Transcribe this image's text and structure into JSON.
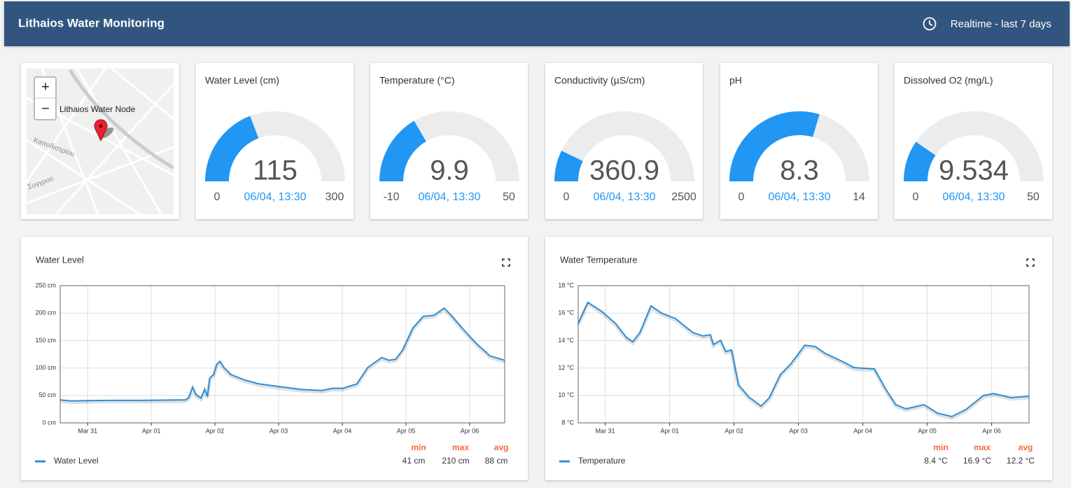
{
  "header": {
    "title": "Lithaios Water Monitoring",
    "range": "Realtime - last 7 days"
  },
  "map": {
    "zoom_in": "+",
    "zoom_out": "−",
    "marker_label": "Lithaios Water Node",
    "streets": [
      "Καποδιστρίου",
      "Συγγρού"
    ]
  },
  "gauges": [
    {
      "title": "Water Level (cm)",
      "value": 115,
      "min": 0,
      "max": 300,
      "time": "06/04, 13:30"
    },
    {
      "title": "Temperature (°C)",
      "value": 9.9,
      "min": -10,
      "max": 50,
      "time": "06/04, 13:30"
    },
    {
      "title": "Conductivity (µS/cm)",
      "value": 360.9,
      "min": 0,
      "max": 2500,
      "time": "06/04, 13:30"
    },
    {
      "title": "pH",
      "value": 8.3,
      "min": 0,
      "max": 14,
      "time": "06/04, 13:30"
    },
    {
      "title": "Dissolved O2 (mg/L)",
      "value": 9.534,
      "min": 0,
      "max": 50,
      "time": "06/04, 13:30"
    }
  ],
  "charts": [
    {
      "type": "line",
      "title": "Water Level",
      "x": [
        -0.43,
        -0.27,
        0.27,
        0.82,
        1.54,
        1.59,
        1.65,
        1.7,
        1.78,
        1.84,
        1.88,
        1.92,
        1.98,
        2.03,
        2.08,
        2.14,
        2.25,
        2.47,
        2.69,
        3.02,
        3.35,
        3.68,
        3.85,
        4.01,
        4.23,
        4.4,
        4.62,
        4.73,
        4.84,
        4.95,
        5.11,
        5.27,
        5.44,
        5.6,
        5.71,
        5.88,
        6.1,
        6.32,
        6.55
      ],
      "series": [
        {
          "name": "Water Level",
          "color": "#2b8fd8",
          "values": [
            42,
            40,
            41,
            41,
            42,
            46,
            65,
            52,
            45,
            61,
            48,
            82,
            88,
            107,
            112,
            101,
            88,
            78,
            71,
            66,
            61,
            59,
            63,
            63,
            71,
            101,
            119,
            114,
            116,
            133,
            173,
            194,
            196,
            209,
            196,
            173,
            145,
            122,
            114
          ]
        }
      ],
      "xlim": [
        -0.43,
        6.55
      ],
      "xticks": [
        {
          "value": 0,
          "label": "Mar 31"
        },
        {
          "value": 1,
          "label": "Apr 01"
        },
        {
          "value": 2,
          "label": "Apr 02"
        },
        {
          "value": 3,
          "label": "Apr 03"
        },
        {
          "value": 4,
          "label": "Apr 04"
        },
        {
          "value": 5,
          "label": "Apr 05"
        },
        {
          "value": 6,
          "label": "Apr 06"
        }
      ],
      "ylim": [
        0,
        250
      ],
      "yticks": [
        {
          "value": 0,
          "label": "0 cm"
        },
        {
          "value": 50,
          "label": "50 cm"
        },
        {
          "value": 100,
          "label": "100 cm"
        },
        {
          "value": 150,
          "label": "150 cm"
        },
        {
          "value": 200,
          "label": "200 cm"
        },
        {
          "value": 250,
          "label": "250 cm"
        }
      ],
      "grid": true,
      "stats": {
        "headers": [
          "min",
          "max",
          "avg"
        ],
        "values": [
          "41 cm",
          "210 cm",
          "88 cm"
        ]
      }
    },
    {
      "type": "line",
      "title": "Water Temperature",
      "x": [
        -0.42,
        -0.27,
        -0.05,
        0.16,
        0.33,
        0.43,
        0.54,
        0.71,
        0.87,
        1.09,
        1.36,
        1.52,
        1.63,
        1.68,
        1.79,
        1.87,
        1.96,
        2.07,
        2.23,
        2.42,
        2.55,
        2.72,
        2.88,
        3.1,
        3.26,
        3.42,
        3.7,
        3.86,
        4.18,
        4.35,
        4.51,
        4.67,
        4.95,
        5.16,
        5.38,
        5.6,
        5.87,
        6.03,
        6.3,
        6.58
      ],
      "series": [
        {
          "name": "Temperature",
          "color": "#2b8fd8",
          "values": [
            15.24,
            16.78,
            16.11,
            15.24,
            14.22,
            13.92,
            14.58,
            16.52,
            16.01,
            15.6,
            14.58,
            14.33,
            14.43,
            13.71,
            14.02,
            13.2,
            13.31,
            10.76,
            9.89,
            9.22,
            9.84,
            11.52,
            12.29,
            13.66,
            13.56,
            13.05,
            12.44,
            12.03,
            11.93,
            10.5,
            9.33,
            9.02,
            9.33,
            8.71,
            8.46,
            8.97,
            9.99,
            10.14,
            9.84,
            9.94
          ]
        }
      ],
      "xlim": [
        -0.42,
        6.58
      ],
      "xticks": [
        {
          "value": 0,
          "label": "Mar 31"
        },
        {
          "value": 1,
          "label": "Apr 01"
        },
        {
          "value": 2,
          "label": "Apr 02"
        },
        {
          "value": 3,
          "label": "Apr 03"
        },
        {
          "value": 4,
          "label": "Apr 04"
        },
        {
          "value": 5,
          "label": "Apr 05"
        },
        {
          "value": 6,
          "label": "Apr 06"
        }
      ],
      "ylim": [
        8,
        18
      ],
      "yticks": [
        {
          "value": 8,
          "label": "8 °C"
        },
        {
          "value": 10,
          "label": "10 °C"
        },
        {
          "value": 12,
          "label": "12 °C"
        },
        {
          "value": 14,
          "label": "14 °C"
        },
        {
          "value": 16,
          "label": "16 °C"
        },
        {
          "value": 18,
          "label": "18 °C"
        }
      ],
      "grid": true,
      "stats": {
        "headers": [
          "min",
          "max",
          "avg"
        ],
        "values": [
          "8.4 °C",
          "16.9 °C",
          "12.2 °C"
        ]
      }
    }
  ]
}
